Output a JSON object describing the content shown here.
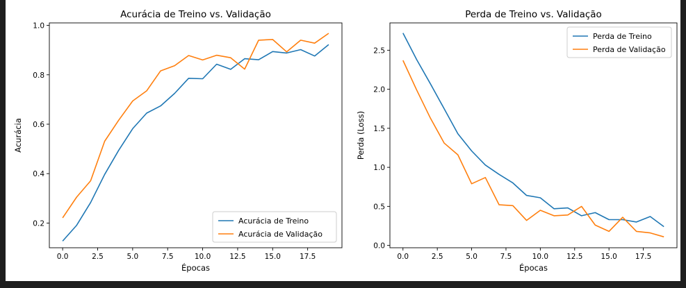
{
  "chart_data": [
    {
      "type": "line",
      "title": "Acurácia de Treino vs. Validação",
      "xlabel": "Épocas",
      "ylabel": "Acurácia",
      "xlim": [
        -0.95,
        19.95
      ],
      "ylim": [
        0.1,
        1.01
      ],
      "xticks": [
        0.0,
        2.5,
        5.0,
        7.5,
        10.0,
        12.5,
        15.0,
        17.5
      ],
      "xtick_labels": [
        "0.0",
        "2.5",
        "5.0",
        "7.5",
        "10.0",
        "12.5",
        "15.0",
        "17.5"
      ],
      "yticks": [
        0.2,
        0.4,
        0.6,
        0.8,
        1.0
      ],
      "ytick_labels": [
        "0.2",
        "0.4",
        "0.6",
        "0.8",
        "1.0"
      ],
      "legend_position": "lower-right",
      "grid": false,
      "x": [
        0,
        1,
        2,
        3,
        4,
        5,
        6,
        7,
        8,
        9,
        10,
        11,
        12,
        13,
        14,
        15,
        16,
        17,
        18,
        19
      ],
      "series": [
        {
          "name": "Acurácia de Treino",
          "color": "#1f77b4",
          "values": [
            0.127,
            0.191,
            0.283,
            0.397,
            0.494,
            0.582,
            0.645,
            0.674,
            0.725,
            0.786,
            0.784,
            0.843,
            0.822,
            0.865,
            0.861,
            0.894,
            0.888,
            0.902,
            0.876,
            0.922
          ]
        },
        {
          "name": "Acurácia de Validação",
          "color": "#ff7f0e",
          "values": [
            0.221,
            0.305,
            0.371,
            0.531,
            0.616,
            0.694,
            0.735,
            0.816,
            0.837,
            0.878,
            0.86,
            0.879,
            0.869,
            0.823,
            0.94,
            0.943,
            0.893,
            0.94,
            0.928,
            0.968
          ]
        }
      ]
    },
    {
      "type": "line",
      "title": "Perda de Treino vs. Validação",
      "xlabel": "Épocas",
      "ylabel": "Perda (Loss)",
      "xlim": [
        -0.95,
        19.95
      ],
      "ylim": [
        -0.03,
        2.85
      ],
      "xticks": [
        0.0,
        2.5,
        5.0,
        7.5,
        10.0,
        12.5,
        15.0,
        17.5
      ],
      "xtick_labels": [
        "0.0",
        "2.5",
        "5.0",
        "7.5",
        "10.0",
        "12.5",
        "15.0",
        "17.5"
      ],
      "yticks": [
        0.0,
        0.5,
        1.0,
        1.5,
        2.0,
        2.5
      ],
      "ytick_labels": [
        "0.0",
        "0.5",
        "1.0",
        "1.5",
        "2.0",
        "2.5"
      ],
      "legend_position": "upper-right",
      "grid": false,
      "x": [
        0,
        1,
        2,
        3,
        4,
        5,
        6,
        7,
        8,
        9,
        10,
        11,
        12,
        13,
        14,
        15,
        16,
        17,
        18,
        19
      ],
      "series": [
        {
          "name": "Perda de Treino",
          "color": "#1f77b4",
          "values": [
            2.72,
            2.38,
            2.07,
            1.75,
            1.43,
            1.21,
            1.03,
            0.91,
            0.8,
            0.64,
            0.61,
            0.47,
            0.48,
            0.38,
            0.42,
            0.33,
            0.33,
            0.3,
            0.37,
            0.24
          ]
        },
        {
          "name": "Perda de Validação",
          "color": "#ff7f0e",
          "values": [
            2.37,
            1.99,
            1.63,
            1.31,
            1.16,
            0.79,
            0.87,
            0.52,
            0.51,
            0.32,
            0.45,
            0.38,
            0.39,
            0.5,
            0.26,
            0.18,
            0.36,
            0.18,
            0.16,
            0.11
          ]
        }
      ]
    }
  ]
}
